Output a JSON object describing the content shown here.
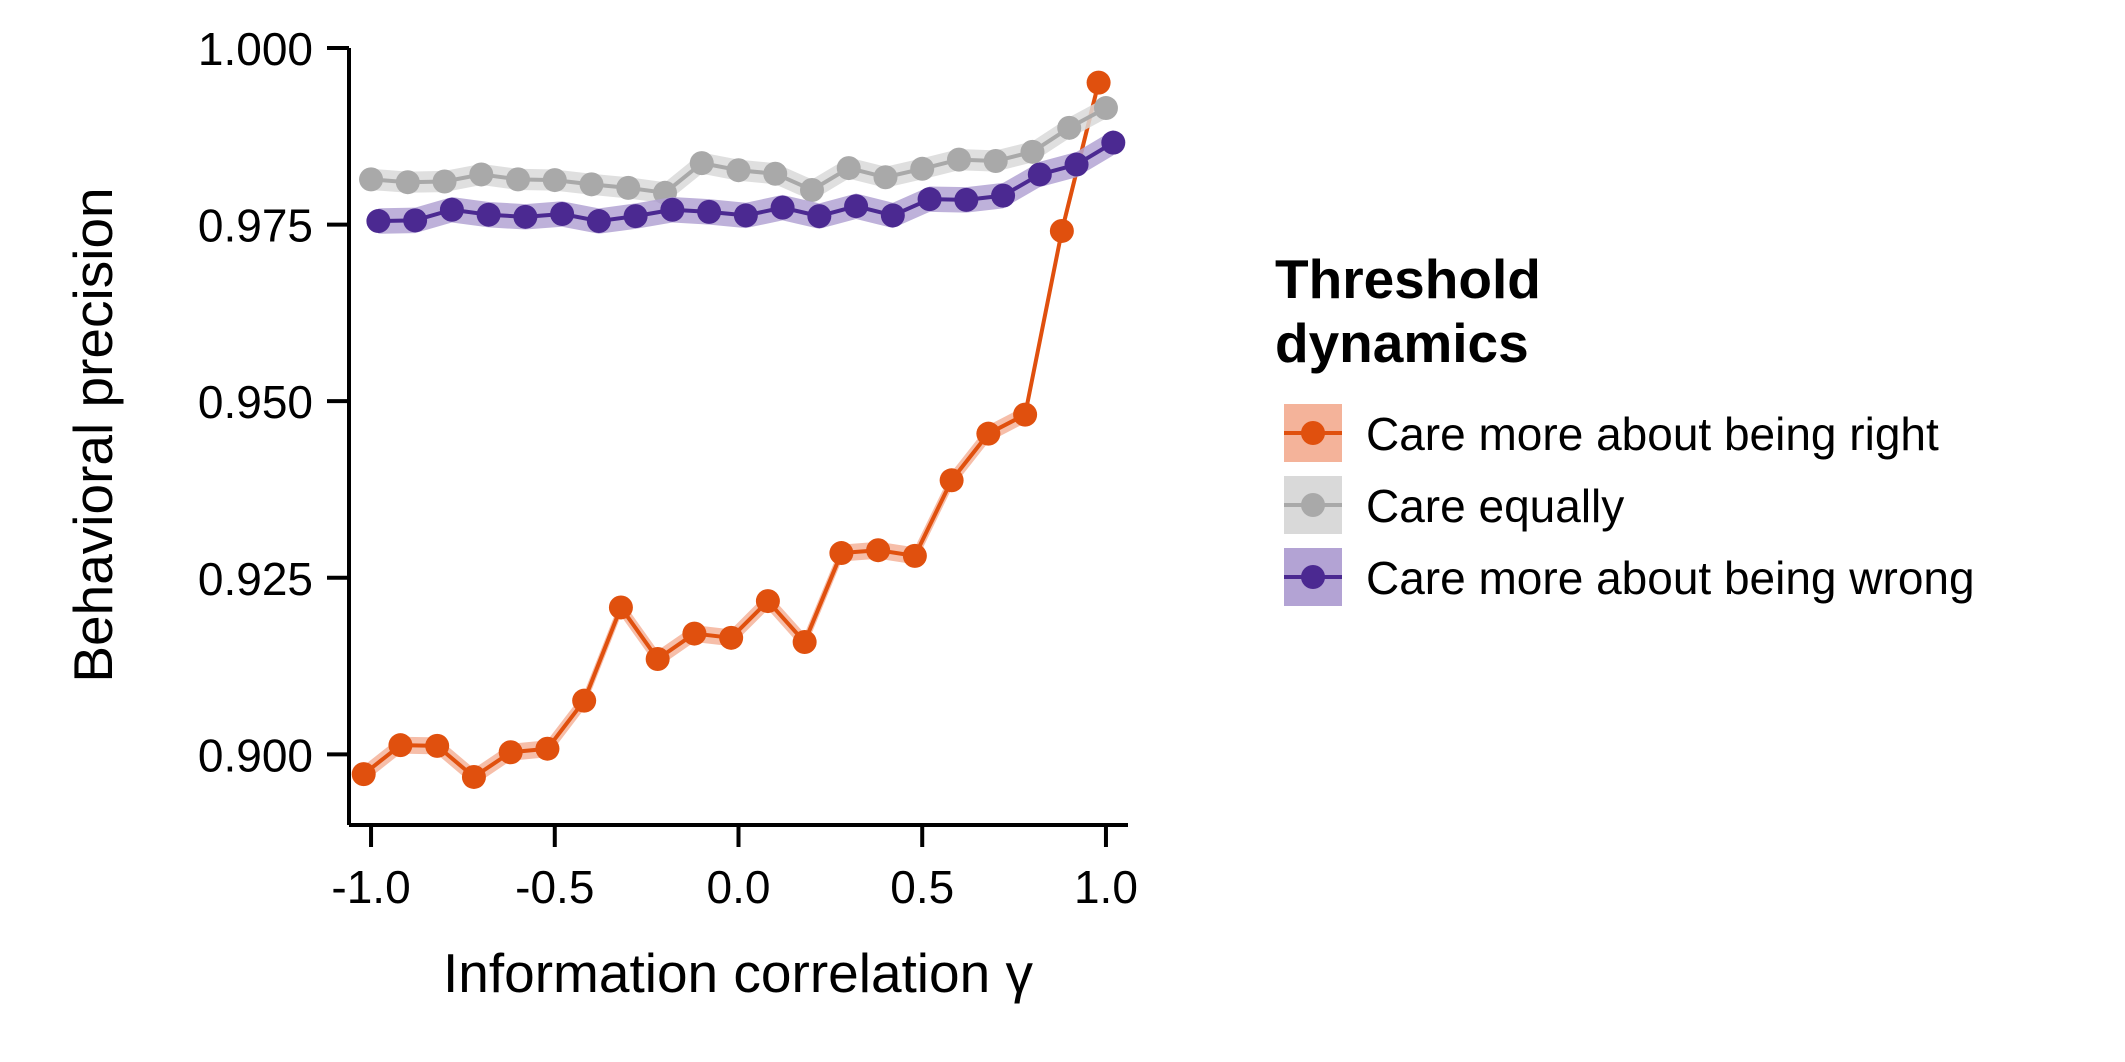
{
  "chart_data": {
    "type": "line",
    "title": "",
    "xlabel": "Information correlation γ",
    "ylabel": "Behavioral precision",
    "xlim": [
      -1.06,
      1.06
    ],
    "ylim": [
      0.89,
      1.0
    ],
    "x_ticks": [
      -1.0,
      -0.5,
      0.0,
      0.5,
      1.0
    ],
    "x_tick_labels": [
      "-1.0",
      "-0.5",
      "0.0",
      "0.5",
      "1.0"
    ],
    "y_ticks": [
      0.9,
      0.925,
      0.95,
      0.975,
      1.0
    ],
    "y_tick_labels": [
      "0.900",
      "0.925",
      "0.950",
      "0.975",
      "1.000"
    ],
    "grid": false,
    "legend": {
      "title_line1": "Threshold",
      "title_line2": "dynamics",
      "placement": "right"
    },
    "series": [
      {
        "name": "Care more about being right",
        "color": "#e0500e",
        "band_color": "#f4b39a",
        "x": [
          -1.02,
          -0.92,
          -0.82,
          -0.72,
          -0.62,
          -0.52,
          -0.42,
          -0.32,
          -0.22,
          -0.12,
          -0.02,
          0.08,
          0.18,
          0.28,
          0.38,
          0.48,
          0.58,
          0.68,
          0.78,
          0.88,
          0.98
        ],
        "values": [
          0.8972,
          0.9013,
          0.9012,
          0.8968,
          0.9003,
          0.9008,
          0.9076,
          0.9208,
          0.9135,
          0.9171,
          0.9165,
          0.9217,
          0.9159,
          0.9285,
          0.9289,
          0.9281,
          0.9388,
          0.9454,
          0.9481,
          0.9741,
          0.9951
        ],
        "band": 0.0012
      },
      {
        "name": "Care equally",
        "color": "#a9a9a9",
        "band_color": "#d9d9d9",
        "x": [
          -1.0,
          -0.9,
          -0.8,
          -0.7,
          -0.6,
          -0.5,
          -0.4,
          -0.3,
          -0.2,
          -0.1,
          0.0,
          0.1,
          0.2,
          0.3,
          0.4,
          0.5,
          0.6,
          0.7,
          0.8,
          0.9,
          1.0
        ],
        "values": [
          0.9814,
          0.981,
          0.9811,
          0.9821,
          0.9814,
          0.9813,
          0.9807,
          0.9802,
          0.9795,
          0.9837,
          0.9827,
          0.9822,
          0.9799,
          0.983,
          0.9817,
          0.9829,
          0.9842,
          0.984,
          0.9853,
          0.9887,
          0.9915
        ],
        "band": 0.0015
      },
      {
        "name": "Care more about being wrong",
        "color": "#4b2991",
        "band_color": "#b3a3d4",
        "x": [
          -0.98,
          -0.88,
          -0.78,
          -0.68,
          -0.58,
          -0.48,
          -0.38,
          -0.28,
          -0.18,
          -0.08,
          0.02,
          0.12,
          0.22,
          0.32,
          0.42,
          0.52,
          0.62,
          0.72,
          0.82,
          0.92,
          1.02
        ],
        "values": [
          0.9755,
          0.9756,
          0.9771,
          0.9764,
          0.9761,
          0.9765,
          0.9755,
          0.9762,
          0.9771,
          0.9768,
          0.9763,
          0.9774,
          0.9762,
          0.9776,
          0.9763,
          0.9786,
          0.9785,
          0.9791,
          0.9821,
          0.9835,
          0.9866
        ],
        "band": 0.0018
      }
    ]
  }
}
